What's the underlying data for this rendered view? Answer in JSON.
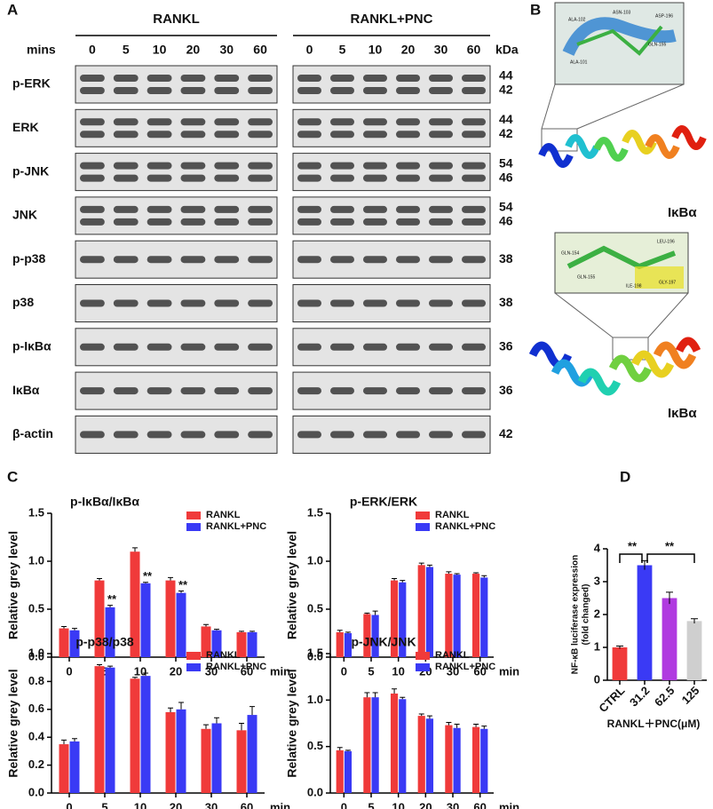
{
  "panel_labels": [
    "A",
    "B",
    "C",
    "D"
  ],
  "blot": {
    "groups": [
      "RANKL",
      "RANKL+PNC"
    ],
    "time_label": "mins",
    "times": [
      "0",
      "5",
      "10",
      "20",
      "30",
      "60"
    ],
    "unit": "kDa",
    "rows": [
      {
        "name": "p-ERK",
        "kda": [
          "44",
          "42"
        ]
      },
      {
        "name": "ERK",
        "kda": [
          "44",
          "42"
        ]
      },
      {
        "name": "p-JNK",
        "kda": [
          "54",
          "46"
        ]
      },
      {
        "name": "JNK",
        "kda": [
          "54",
          "46"
        ]
      },
      {
        "name": "p-p38",
        "kda": [
          "38"
        ]
      },
      {
        "name": "p38",
        "kda": [
          "38"
        ]
      },
      {
        "name": "p-IκBα",
        "kda": [
          "36"
        ]
      },
      {
        "name": "IκBα",
        "kda": [
          "36"
        ]
      },
      {
        "name": "β-actin",
        "kda": [
          "42"
        ]
      }
    ]
  },
  "structures": {
    "labels": [
      "IκBα",
      "IκBα"
    ],
    "residues_top": [
      "ALA-102",
      "ASN-103",
      "ASP-196",
      "GLN-155",
      "ALA-101"
    ],
    "residues_bottom": [
      "GLN-154",
      "GLN-155",
      "LEU-196",
      "ILE-198",
      "GLY-197"
    ]
  },
  "chart_data": [
    {
      "type": "bar",
      "title": "p-IκBα/IκBα",
      "ylabel": "Relative grey level",
      "xlabel": "min",
      "categories": [
        "0",
        "5",
        "10",
        "20",
        "30",
        "60"
      ],
      "series": [
        {
          "name": "RANKL",
          "color": "#f03a3a",
          "values": [
            0.3,
            0.8,
            1.1,
            0.8,
            0.32,
            0.26
          ],
          "errors": [
            0.02,
            0.02,
            0.04,
            0.03,
            0.02,
            0.01
          ]
        },
        {
          "name": "RANKL+PNC",
          "color": "#3a3af5",
          "values": [
            0.28,
            0.52,
            0.77,
            0.67,
            0.28,
            0.26
          ],
          "errors": [
            0.02,
            0.02,
            0.01,
            0.02,
            0.01,
            0.01
          ]
        }
      ],
      "significance": [
        null,
        "**",
        "**",
        "**",
        null,
        null
      ],
      "ylim": [
        0,
        1.5
      ],
      "yticks": [
        {
          "value": 0,
          "label": "0.0"
        },
        0.5,
        {
          "value": 1,
          "label": "1.0"
        },
        1.5
      ]
    },
    {
      "type": "bar",
      "title": "p-ERK/ERK",
      "ylabel": "Relative grey level",
      "xlabel": "min",
      "categories": [
        "0",
        "5",
        "10",
        "20",
        "30",
        "60"
      ],
      "series": [
        {
          "name": "RANKL",
          "color": "#f03a3a",
          "values": [
            0.26,
            0.45,
            0.8,
            0.96,
            0.87,
            0.87
          ],
          "errors": [
            0.02,
            0.01,
            0.02,
            0.02,
            0.02,
            0.01
          ]
        },
        {
          "name": "RANKL+PNC",
          "color": "#3a3af5",
          "values": [
            0.25,
            0.44,
            0.78,
            0.94,
            0.86,
            0.83
          ],
          "errors": [
            0.01,
            0.04,
            0.02,
            0.02,
            0.01,
            0.02
          ]
        }
      ],
      "ylim": [
        0,
        1.5
      ],
      "yticks": [
        {
          "value": 0,
          "label": "0.0"
        },
        0.5,
        {
          "value": 1,
          "label": "1.0"
        },
        1.5
      ]
    },
    {
      "type": "bar",
      "title": "p-p38/p38",
      "ylabel": "Relative grey level",
      "xlabel": "min",
      "categories": [
        "0",
        "5",
        "10",
        "20",
        "30",
        "60"
      ],
      "series": [
        {
          "name": "RANKL",
          "color": "#f03a3a",
          "values": [
            0.35,
            0.91,
            0.82,
            0.58,
            0.46,
            0.45
          ],
          "errors": [
            0.03,
            0.01,
            0.01,
            0.03,
            0.03,
            0.05
          ]
        },
        {
          "name": "RANKL+PNC",
          "color": "#3a3af5",
          "values": [
            0.37,
            0.9,
            0.84,
            0.6,
            0.5,
            0.56
          ],
          "errors": [
            0.02,
            0.01,
            0.02,
            0.05,
            0.04,
            0.06
          ]
        }
      ],
      "ylim": [
        0,
        1.0
      ],
      "yticks": [
        {
          "value": 0,
          "label": "0.0"
        },
        0.2,
        0.4,
        0.6,
        0.8,
        {
          "value": 1,
          "label": "1.0"
        }
      ]
    },
    {
      "type": "bar",
      "title": "p-JNK/JNK",
      "ylabel": "Relative grey level",
      "xlabel": "min",
      "categories": [
        "0",
        "5",
        "10",
        "20",
        "30",
        "60"
      ],
      "series": [
        {
          "name": "RANKL",
          "color": "#f03a3a",
          "values": [
            0.46,
            1.03,
            1.07,
            0.83,
            0.73,
            0.71
          ],
          "errors": [
            0.03,
            0.05,
            0.05,
            0.02,
            0.03,
            0.03
          ]
        },
        {
          "name": "RANKL+PNC",
          "color": "#3a3af5",
          "values": [
            0.45,
            1.03,
            1.01,
            0.8,
            0.7,
            0.69
          ],
          "errors": [
            0.01,
            0.05,
            0.02,
            0.03,
            0.04,
            0.03
          ]
        }
      ],
      "ylim": [
        0,
        1.5
      ],
      "yticks": [
        {
          "value": 0,
          "label": "0.0"
        },
        0.5,
        {
          "value": 1,
          "label": "1.0"
        },
        1.5
      ]
    },
    {
      "type": "bar",
      "ylabel": "NF-κB luciferase expression",
      "ylabel_note": "(fold changed)",
      "xlabel": "RANKL＋PNC(μM)",
      "categories": [
        "CTRL",
        "31.2",
        "62.5",
        "125"
      ],
      "values": [
        1.0,
        3.5,
        2.5,
        1.8
      ],
      "errors": [
        0.04,
        0.14,
        0.18,
        0.07
      ],
      "colors": [
        "#f03a3a",
        "#3a3af5",
        "#b03ae0",
        "#cfcfcf"
      ],
      "comparisons": [
        {
          "from": 0,
          "to": 1,
          "text": "**"
        },
        {
          "from": 1,
          "to": 3,
          "text": "**"
        }
      ],
      "ylim": [
        0,
        4
      ],
      "yticks": [
        0,
        1,
        2,
        3,
        4
      ]
    }
  ]
}
